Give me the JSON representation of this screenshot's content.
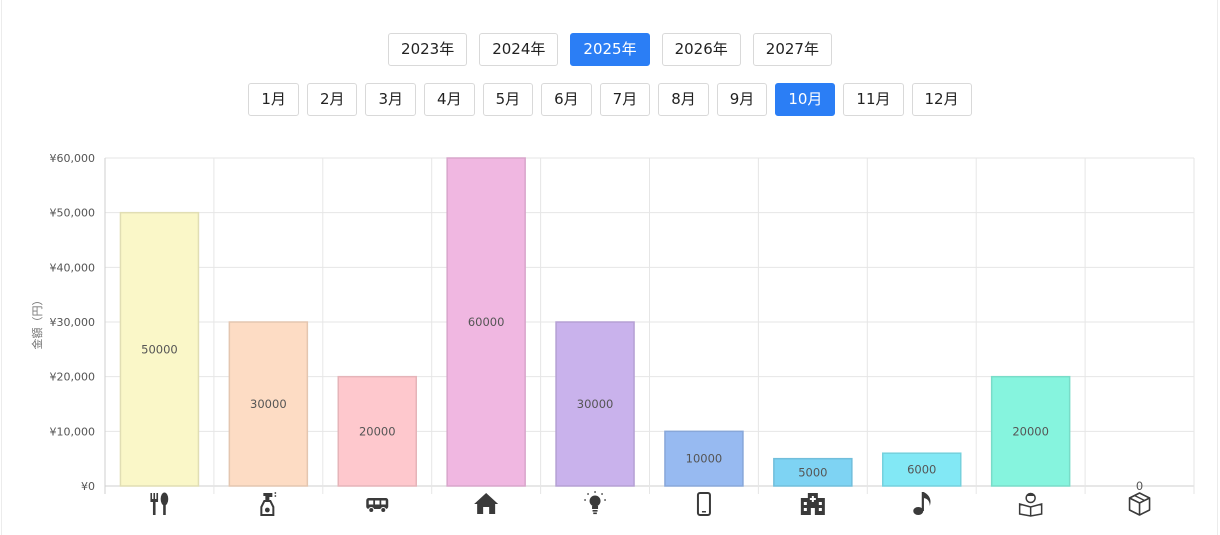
{
  "years": {
    "items": [
      "2023年",
      "2024年",
      "2025年",
      "2026年",
      "2027年"
    ],
    "selected": 2
  },
  "months": {
    "items": [
      "1月",
      "2月",
      "3月",
      "4月",
      "5月",
      "6月",
      "7月",
      "8月",
      "9月",
      "10月",
      "11月",
      "12月"
    ],
    "selected": 9
  },
  "chart_data": {
    "type": "bar",
    "categories": [
      "food-icon",
      "cleaning-spray-icon",
      "bus-icon",
      "house-icon",
      "lightbulb-icon",
      "smartphone-icon",
      "hospital-icon",
      "music-note-icon",
      "reading-icon",
      "box-icon"
    ],
    "values": [
      50000,
      30000,
      20000,
      60000,
      30000,
      10000,
      5000,
      6000,
      20000,
      0
    ],
    "colors": [
      "#faf7c8",
      "#fddcc4",
      "#fec8cd",
      "#f0b7e1",
      "#c9b2ec",
      "#97baf1",
      "#7ed3f3",
      "#82e8f5",
      "#86f4de",
      "#e0e0e0"
    ],
    "title": "",
    "ylabel": "金額（円）",
    "yticks": [
      "¥0",
      "¥10,000",
      "¥20,000",
      "¥30,000",
      "¥40,000",
      "¥50,000",
      "¥60,000"
    ],
    "ylim": [
      0,
      60000
    ],
    "grid": true
  }
}
